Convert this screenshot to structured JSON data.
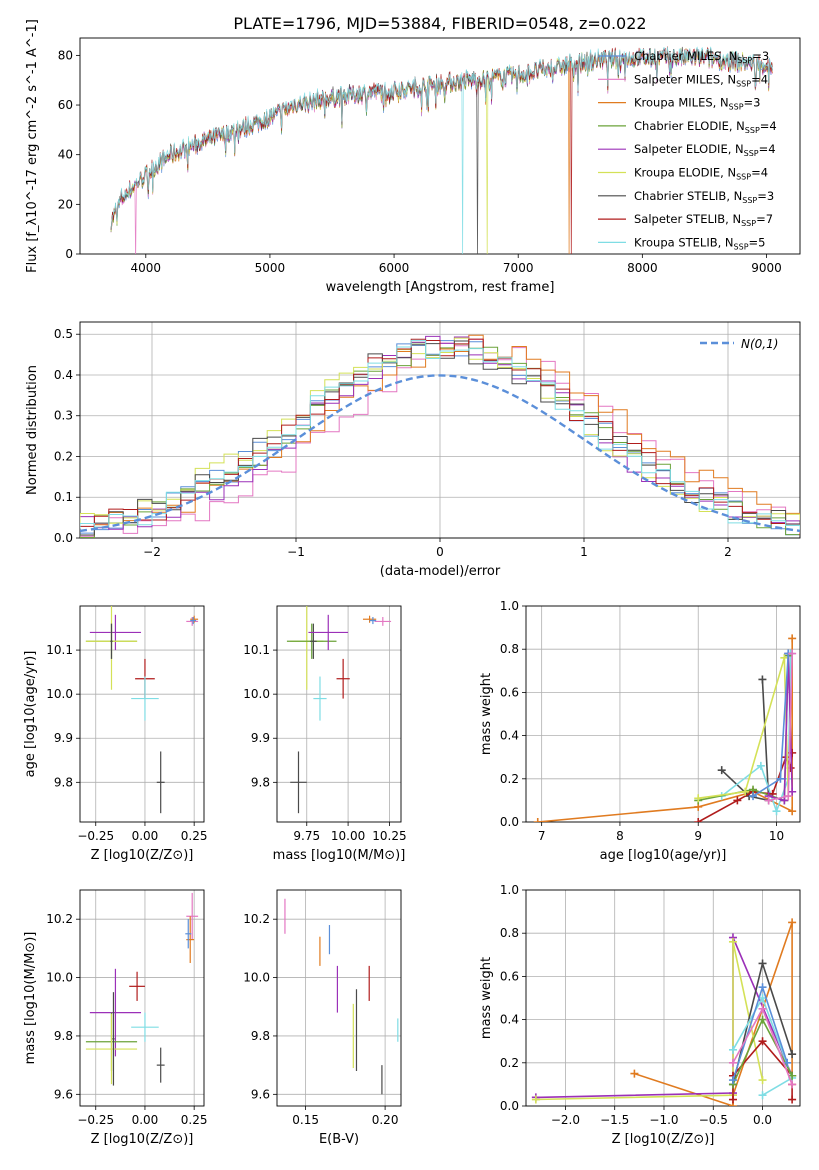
{
  "figure_title": "PLATE=1796, MJD=53884, FIBERID=0548, z=0.022",
  "colors": {
    "Chabrier MILES": "#5b8fd9",
    "Salpeter MILES": "#e377c2",
    "Kroupa MILES": "#e07b20",
    "Chabrier ELODIE": "#6ba33a",
    "Salpeter ELODIE": "#9b30b8",
    "Kroupa ELODIE": "#d4e157",
    "Chabrier STELIB": "#4a4a4a",
    "Salpeter STELIB": "#b01c1c",
    "Kroupa STELIB": "#7fdde4"
  },
  "chart_data": [
    {
      "id": "spectrum",
      "type": "line",
      "title": "",
      "xlabel": "wavelength [Angstrom, rest frame]",
      "ylabel": "Flux [f_λ10^-17 erg cm^-2 s^-1 A^-1]",
      "xlim": [
        3470,
        9270
      ],
      "ylim": [
        0,
        87
      ],
      "xticks": [
        4000,
        5000,
        6000,
        7000,
        8000,
        9000
      ],
      "yticks": [
        0,
        20,
        40,
        60,
        80
      ],
      "grid": false,
      "legend_position": "top-right",
      "legend": [
        {
          "model": "Chabrier MILES",
          "nssp": "3"
        },
        {
          "model": "Salpeter MILES",
          "nssp": "4"
        },
        {
          "model": "Kroupa MILES",
          "nssp": "3"
        },
        {
          "model": "Chabrier ELODIE",
          "nssp": "4"
        },
        {
          "model": "Salpeter ELODIE",
          "nssp": "4"
        },
        {
          "model": "Kroupa ELODIE",
          "nssp": "4"
        },
        {
          "model": "Chabrier STELIB",
          "nssp": "3"
        },
        {
          "model": "Salpeter STELIB",
          "nssp": "7"
        },
        {
          "model": "Kroupa STELIB",
          "nssp": "5"
        }
      ],
      "continuum": {
        "x": [
          3720,
          3800,
          3900,
          4000,
          4200,
          4500,
          4800,
          5000,
          5200,
          5500,
          5800,
          6000,
          6300,
          6600,
          7000,
          7300,
          7600,
          8000,
          8500,
          9000
        ],
        "y": [
          13,
          22,
          27,
          32,
          40,
          46,
          51,
          55,
          60,
          63,
          65,
          66,
          68,
          70,
          72,
          75,
          78,
          79,
          79,
          76
        ]
      }
    },
    {
      "id": "residuals",
      "type": "step",
      "xlabel": "(data-model)/error",
      "ylabel": "Normed distribution",
      "xlim": [
        -2.5,
        2.5
      ],
      "ylim": [
        0,
        0.53
      ],
      "xticks": [
        -2,
        -1,
        0,
        1,
        2
      ],
      "yticks": [
        0.0,
        0.1,
        0.2,
        0.3,
        0.4,
        0.5
      ],
      "grid": true,
      "legend_position": "top-right",
      "normal_label": "N(0,1)",
      "normal_color": "#5b8fd9"
    },
    {
      "id": "age-vs-Z",
      "type": "errorbar",
      "xlabel": "Z [log10(Z/Z⊙)]",
      "ylabel": "age [log10(age/yr)]",
      "xlim": [
        -0.33,
        0.3
      ],
      "ylim": [
        9.71,
        10.2
      ],
      "xticks": [
        -0.25,
        0.0,
        0.25
      ],
      "yticks": [
        9.8,
        9.9,
        10.0,
        10.1
      ],
      "grid": true,
      "points": [
        {
          "model": "Salpeter ELODIE",
          "x": -0.15,
          "y": 10.14,
          "xerr": 0.13,
          "yerr": 0.04
        },
        {
          "model": "Chabrier ELODIE",
          "x": -0.17,
          "y": 10.12,
          "xerr": 0.13,
          "yerr": 0.04
        },
        {
          "model": "Kroupa ELODIE",
          "x": -0.17,
          "y": 10.12,
          "xerr": 0.13,
          "yerr": 0.11
        },
        {
          "model": "Chabrier STELIB",
          "x": -0.17,
          "y": 10.12,
          "xerr": 0.006,
          "yerr": 0.04
        },
        {
          "model": "Salpeter STELIB",
          "x": 0.0,
          "y": 10.035,
          "xerr": 0.05,
          "yerr": 0.045
        },
        {
          "model": "Kroupa STELIB",
          "x": 0.0,
          "y": 9.99,
          "xerr": 0.07,
          "yerr": 0.05
        },
        {
          "model": "Chabrier STELIB",
          "x": 0.08,
          "y": 9.8,
          "xerr": 0.02,
          "yerr": 0.07
        },
        {
          "model": "Salpeter MILES",
          "x": 0.24,
          "y": 10.165,
          "xerr": 0.03,
          "yerr": 0.01
        },
        {
          "model": "Kroupa MILES",
          "x": 0.25,
          "y": 10.17,
          "xerr": 0.02,
          "yerr": 0.008
        },
        {
          "model": "Chabrier MILES",
          "x": 0.245,
          "y": 10.167,
          "xerr": 0.015,
          "yerr": 0.008
        }
      ]
    },
    {
      "id": "age-vs-mass",
      "type": "errorbar",
      "xlabel": "mass [log10(M/M⊙)]",
      "ylabel": "",
      "xlim": [
        9.57,
        10.32
      ],
      "ylim": [
        9.71,
        10.2
      ],
      "xticks": [
        9.75,
        10.0,
        10.25
      ],
      "yticks": [
        9.8,
        9.9,
        10.0,
        10.1
      ],
      "grid": true,
      "points": [
        {
          "model": "Kroupa ELODIE",
          "x": 9.75,
          "y": 10.12,
          "xerr": 0.1,
          "yerr": 0.11
        },
        {
          "model": "Chabrier ELODIE",
          "x": 9.78,
          "y": 10.12,
          "xerr": 0.15,
          "yerr": 0.04
        },
        {
          "model": "Chabrier STELIB",
          "x": 9.79,
          "y": 10.12,
          "xerr": 0.02,
          "yerr": 0.04
        },
        {
          "model": "Salpeter ELODIE",
          "x": 9.88,
          "y": 10.14,
          "xerr": 0.12,
          "yerr": 0.04
        },
        {
          "model": "Kroupa STELIB",
          "x": 9.83,
          "y": 9.99,
          "xerr": 0.04,
          "yerr": 0.05
        },
        {
          "model": "Salpeter STELIB",
          "x": 9.97,
          "y": 10.035,
          "xerr": 0.04,
          "yerr": 0.045
        },
        {
          "model": "Chabrier STELIB",
          "x": 9.7,
          "y": 9.8,
          "xerr": 0.05,
          "yerr": 0.07
        },
        {
          "model": "Kroupa MILES",
          "x": 10.13,
          "y": 10.17,
          "xerr": 0.04,
          "yerr": 0.008
        },
        {
          "model": "Salpeter MILES",
          "x": 10.21,
          "y": 10.165,
          "xerr": 0.05,
          "yerr": 0.01
        },
        {
          "model": "Chabrier MILES",
          "x": 10.15,
          "y": 10.167,
          "xerr": 0.02,
          "yerr": 0.008
        }
      ]
    },
    {
      "id": "mass-weight-vs-age",
      "type": "line",
      "xlabel": "age [log10(age/yr)]",
      "ylabel": "mass weight",
      "xlim": [
        6.8,
        10.3
      ],
      "ylim": [
        0,
        1.0
      ],
      "xticks": [
        7,
        8,
        9,
        10
      ],
      "yticks": [
        0.0,
        0.2,
        0.4,
        0.6,
        0.8,
        1.0
      ],
      "grid": true,
      "series": [
        {
          "model": "Kroupa MILES",
          "x": [
            6.95,
            9.0,
            9.7,
            10.2,
            10.2
          ],
          "y": [
            0.0,
            0.07,
            0.14,
            0.05,
            0.85
          ]
        },
        {
          "model": "Chabrier STELIB",
          "x": [
            9.3,
            9.65,
            9.9,
            9.82
          ],
          "y": [
            0.24,
            0.12,
            0.1,
            0.66
          ]
        },
        {
          "model": "Kroupa STELIB",
          "x": [
            9.3,
            9.8,
            10.0,
            10.15,
            10.18
          ],
          "y": [
            0.12,
            0.26,
            0.05,
            0.2,
            0.78
          ]
        },
        {
          "model": "Salpeter STELIB",
          "x": [
            9.0,
            9.5,
            9.7,
            9.95,
            10.12,
            10.18,
            10.2
          ],
          "y": [
            0.0,
            0.1,
            0.14,
            0.13,
            0.3,
            0.25,
            0.32
          ]
        },
        {
          "model": "Chabrier ELODIE",
          "x": [
            9.0,
            9.7,
            10.1,
            10.15
          ],
          "y": [
            0.1,
            0.15,
            0.1,
            0.77
          ]
        },
        {
          "model": "Kroupa ELODIE",
          "x": [
            9.0,
            9.6,
            10.1,
            10.15
          ],
          "y": [
            0.11,
            0.14,
            0.76,
            0.12
          ]
        },
        {
          "model": "Salpeter ELODIE",
          "x": [
            9.9,
            10.1,
            10.15,
            10.2
          ],
          "y": [
            0.12,
            0.1,
            0.78,
            0.14
          ]
        },
        {
          "model": "Chabrier MILES",
          "x": [
            9.7,
            10.05,
            10.15
          ],
          "y": [
            0.12,
            0.2,
            0.78
          ]
        },
        {
          "model": "Salpeter MILES",
          "x": [
            9.9,
            10.15,
            10.2
          ],
          "y": [
            0.1,
            0.12,
            0.78
          ]
        }
      ]
    },
    {
      "id": "mass-vs-Z",
      "type": "errorbar",
      "xlabel": "Z [log10(Z/Z⊙)]",
      "ylabel": "mass [log10(M/M⊙)]",
      "xlim": [
        -0.33,
        0.3
      ],
      "ylim": [
        9.56,
        10.3
      ],
      "xticks": [
        -0.25,
        0.0,
        0.25
      ],
      "yticks": [
        9.6,
        9.8,
        10.0,
        10.2
      ],
      "grid": true,
      "points": [
        {
          "model": "Salpeter ELODIE",
          "x": -0.15,
          "y": 9.88,
          "xerr": 0.13,
          "yerr": 0.15
        },
        {
          "model": "Chabrier ELODIE",
          "x": -0.17,
          "y": 9.78,
          "xerr": 0.13,
          "yerr": 0.1
        },
        {
          "model": "Kroupa ELODIE",
          "x": -0.17,
          "y": 9.755,
          "xerr": 0.13,
          "yerr": 0.12
        },
        {
          "model": "Chabrier STELIB",
          "x": -0.16,
          "y": 9.79,
          "xerr": 0.006,
          "yerr": 0.16
        },
        {
          "model": "Salpeter STELIB",
          "x": -0.04,
          "y": 9.97,
          "xerr": 0.04,
          "yerr": 0.05
        },
        {
          "model": "Kroupa STELIB",
          "x": 0.0,
          "y": 9.83,
          "xerr": 0.07,
          "yerr": 0.05
        },
        {
          "model": "Chabrier STELIB",
          "x": 0.08,
          "y": 9.7,
          "xerr": 0.02,
          "yerr": 0.06
        },
        {
          "model": "Salpeter MILES",
          "x": 0.24,
          "y": 10.21,
          "xerr": 0.03,
          "yerr": 0.08
        },
        {
          "model": "Kroupa MILES",
          "x": 0.23,
          "y": 10.13,
          "xerr": 0.02,
          "yerr": 0.08
        },
        {
          "model": "Chabrier MILES",
          "x": 0.22,
          "y": 10.15,
          "xerr": 0.015,
          "yerr": 0.05
        }
      ]
    },
    {
      "id": "mass-vs-ebv",
      "type": "errorbar",
      "xlabel": "E(B-V)",
      "ylabel": "",
      "xlim": [
        0.132,
        0.21
      ],
      "ylim": [
        9.56,
        10.3
      ],
      "xticks": [
        0.15,
        0.2
      ],
      "yticks": [
        9.6,
        9.8,
        10.0,
        10.2
      ],
      "grid": true,
      "points": [
        {
          "model": "Salpeter MILES",
          "x": 0.137,
          "y": 10.21,
          "xerr": 0.0,
          "yerr": 0.06
        },
        {
          "model": "Kroupa MILES",
          "x": 0.159,
          "y": 10.09,
          "xerr": 0.0,
          "yerr": 0.05
        },
        {
          "model": "Chabrier MILES",
          "x": 0.165,
          "y": 10.13,
          "xerr": 0.0,
          "yerr": 0.05
        },
        {
          "model": "Salpeter ELODIE",
          "x": 0.17,
          "y": 9.96,
          "xerr": 0.0,
          "yerr": 0.08
        },
        {
          "model": "Kroupa ELODIE",
          "x": 0.18,
          "y": 9.8,
          "xerr": 0.0,
          "yerr": 0.11
        },
        {
          "model": "Chabrier STELIB",
          "x": 0.182,
          "y": 9.82,
          "xerr": 0.0,
          "yerr": 0.14
        },
        {
          "model": "Salpeter STELIB",
          "x": 0.19,
          "y": 9.98,
          "xerr": 0.0,
          "yerr": 0.06
        },
        {
          "model": "Chabrier STELIB",
          "x": 0.198,
          "y": 9.65,
          "xerr": 0.0,
          "yerr": 0.05
        },
        {
          "model": "Kroupa STELIB",
          "x": 0.208,
          "y": 9.82,
          "xerr": 0.0,
          "yerr": 0.04
        }
      ]
    },
    {
      "id": "mass-weight-vs-Z",
      "type": "line",
      "xlabel": "Z [log10(Z/Z⊙)]",
      "ylabel": "mass weight",
      "xlim": [
        -2.4,
        0.38
      ],
      "ylim": [
        0,
        1.0
      ],
      "xticks": [
        -2.0,
        -1.5,
        -1.0,
        -0.5,
        0.0
      ],
      "yticks": [
        0.0,
        0.2,
        0.4,
        0.6,
        0.8,
        1.0
      ],
      "grid": true,
      "series": [
        {
          "model": "Kroupa MILES",
          "x": [
            -1.3,
            -0.3,
            -0.3,
            0.3,
            0.3
          ],
          "y": [
            0.15,
            0.0,
            0.05,
            0.85,
            0.1
          ]
        },
        {
          "model": "Salpeter ELODIE",
          "x": [
            -2.3,
            -0.3,
            -0.3,
            0.3
          ],
          "y": [
            0.04,
            0.06,
            0.78,
            0.14
          ]
        },
        {
          "model": "Kroupa ELODIE",
          "x": [
            -2.3,
            -0.3,
            -0.3,
            0.0
          ],
          "y": [
            0.03,
            0.05,
            0.76,
            0.12
          ]
        },
        {
          "model": "Chabrier STELIB",
          "x": [
            -0.3,
            0.0,
            0.3
          ],
          "y": [
            0.1,
            0.66,
            0.24
          ]
        },
        {
          "model": "Salpeter STELIB",
          "x": [
            -0.3,
            -0.3,
            0.0,
            0.3,
            0.3
          ],
          "y": [
            0.03,
            0.14,
            0.3,
            0.14,
            0.03
          ]
        },
        {
          "model": "Kroupa STELIB",
          "x": [
            -0.3,
            0.0,
            0.3,
            0.0
          ],
          "y": [
            0.26,
            0.5,
            0.13,
            0.05
          ]
        },
        {
          "model": "Chabrier ELODIE",
          "x": [
            -0.3,
            0.0,
            0.3
          ],
          "y": [
            0.1,
            0.4,
            0.14
          ]
        },
        {
          "model": "Chabrier MILES",
          "x": [
            -0.3,
            0.0,
            0.25
          ],
          "y": [
            0.12,
            0.55,
            0.2
          ]
        },
        {
          "model": "Salpeter MILES",
          "x": [
            -0.3,
            0.0,
            0.3
          ],
          "y": [
            0.2,
            0.45,
            0.1
          ]
        }
      ]
    }
  ]
}
